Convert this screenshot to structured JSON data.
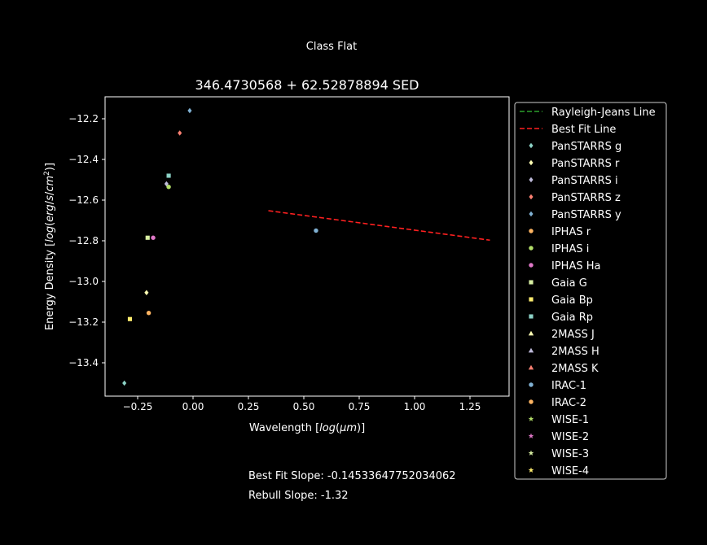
{
  "figure": {
    "suptitle": "Class Flat",
    "footer_slope": "Best Fit Slope: -0.14533647752034062",
    "footer_rebull": "Rebull Slope: -1.32"
  },
  "chart_data": {
    "type": "scatter",
    "title": "346.4730568 + 62.52878894 SED",
    "xlabel": "Wavelength [log(μm)]",
    "ylabel": "Energy Density [log(erg/s/cm²)]",
    "xlim": [
      -0.4,
      1.4
    ],
    "ylim": [
      -13.55,
      -12.1
    ],
    "xticks": [
      -0.25,
      0.0,
      0.25,
      0.5,
      0.75,
      1.0,
      1.25
    ],
    "xtick_labels": [
      "−0.25",
      "0.00",
      "0.25",
      "0.50",
      "0.75",
      "1.00",
      "1.25"
    ],
    "yticks": [
      -12.2,
      -12.4,
      -12.6,
      -12.8,
      -13.0,
      -13.2,
      -13.4
    ],
    "ytick_labels": [
      "−12.2",
      "−12.4",
      "−12.6",
      "−12.8",
      "−13.0",
      "−13.2",
      "−13.4"
    ],
    "grid": false,
    "legend_position": "outside-right",
    "lines": [
      {
        "name": "Rayleigh-Jeans Line",
        "color": "#2ca02c",
        "style": "dashed",
        "x": [],
        "y": []
      },
      {
        "name": "Best Fit Line",
        "color": "#ff2020",
        "style": "dashed",
        "x": [
          0.34,
          1.34
        ],
        "y": [
          -12.652,
          -12.797
        ]
      }
    ],
    "series": [
      {
        "name": "PanSTARRS g",
        "color": "#8dd3c7",
        "marker": "diamond",
        "x": [
          -0.31
        ],
        "y": [
          -13.5
        ]
      },
      {
        "name": "PanSTARRS r",
        "color": "#ffffb3",
        "marker": "diamond",
        "x": [
          -0.21
        ],
        "y": [
          -13.055
        ]
      },
      {
        "name": "PanSTARRS i",
        "color": "#bebada",
        "marker": "diamond",
        "x": [
          -0.12
        ],
        "y": [
          -12.52
        ]
      },
      {
        "name": "PanSTARRS z",
        "color": "#fb8072",
        "marker": "diamond",
        "x": [
          -0.06
        ],
        "y": [
          -12.27
        ]
      },
      {
        "name": "PanSTARRS y",
        "color": "#80b1d3",
        "marker": "diamond",
        "x": [
          -0.015
        ],
        "y": [
          -12.16
        ]
      },
      {
        "name": "IPHAS r",
        "color": "#fdb462",
        "marker": "circle",
        "x": [
          -0.2
        ],
        "y": [
          -13.155
        ]
      },
      {
        "name": "IPHAS i",
        "color": "#b3de69",
        "marker": "circle",
        "x": [
          -0.11
        ],
        "y": [
          -12.535
        ]
      },
      {
        "name": "IPHAS Ha",
        "color": "#e078c8",
        "marker": "circle",
        "x": [
          -0.18
        ],
        "y": [
          -12.785
        ]
      },
      {
        "name": "Gaia G",
        "color": "#d9f0a3",
        "marker": "square",
        "x": [
          -0.205
        ],
        "y": [
          -12.785
        ]
      },
      {
        "name": "Gaia Bp",
        "color": "#ffed6f",
        "marker": "square",
        "x": [
          -0.285
        ],
        "y": [
          -13.185
        ]
      },
      {
        "name": "Gaia Rp",
        "color": "#8dd3c7",
        "marker": "square",
        "x": [
          -0.11
        ],
        "y": [
          -12.48
        ]
      },
      {
        "name": "2MASS J",
        "color": "#ffffb3",
        "marker": "triangle",
        "x": [],
        "y": []
      },
      {
        "name": "2MASS H",
        "color": "#bebada",
        "marker": "triangle",
        "x": [],
        "y": []
      },
      {
        "name": "2MASS K",
        "color": "#fb8072",
        "marker": "triangle",
        "x": [],
        "y": []
      },
      {
        "name": "IRAC-1",
        "color": "#80b1d3",
        "marker": "circle",
        "x": [
          0.555
        ],
        "y": [
          -12.75
        ]
      },
      {
        "name": "IRAC-2",
        "color": "#fdb462",
        "marker": "circle",
        "x": [],
        "y": []
      },
      {
        "name": "WISE-1",
        "color": "#b3de69",
        "marker": "star",
        "x": [],
        "y": []
      },
      {
        "name": "WISE-2",
        "color": "#e078c8",
        "marker": "star",
        "x": [],
        "y": []
      },
      {
        "name": "WISE-3",
        "color": "#d9f0a3",
        "marker": "star",
        "x": [],
        "y": []
      },
      {
        "name": "WISE-4",
        "color": "#ffed6f",
        "marker": "star",
        "x": [],
        "y": []
      }
    ]
  }
}
